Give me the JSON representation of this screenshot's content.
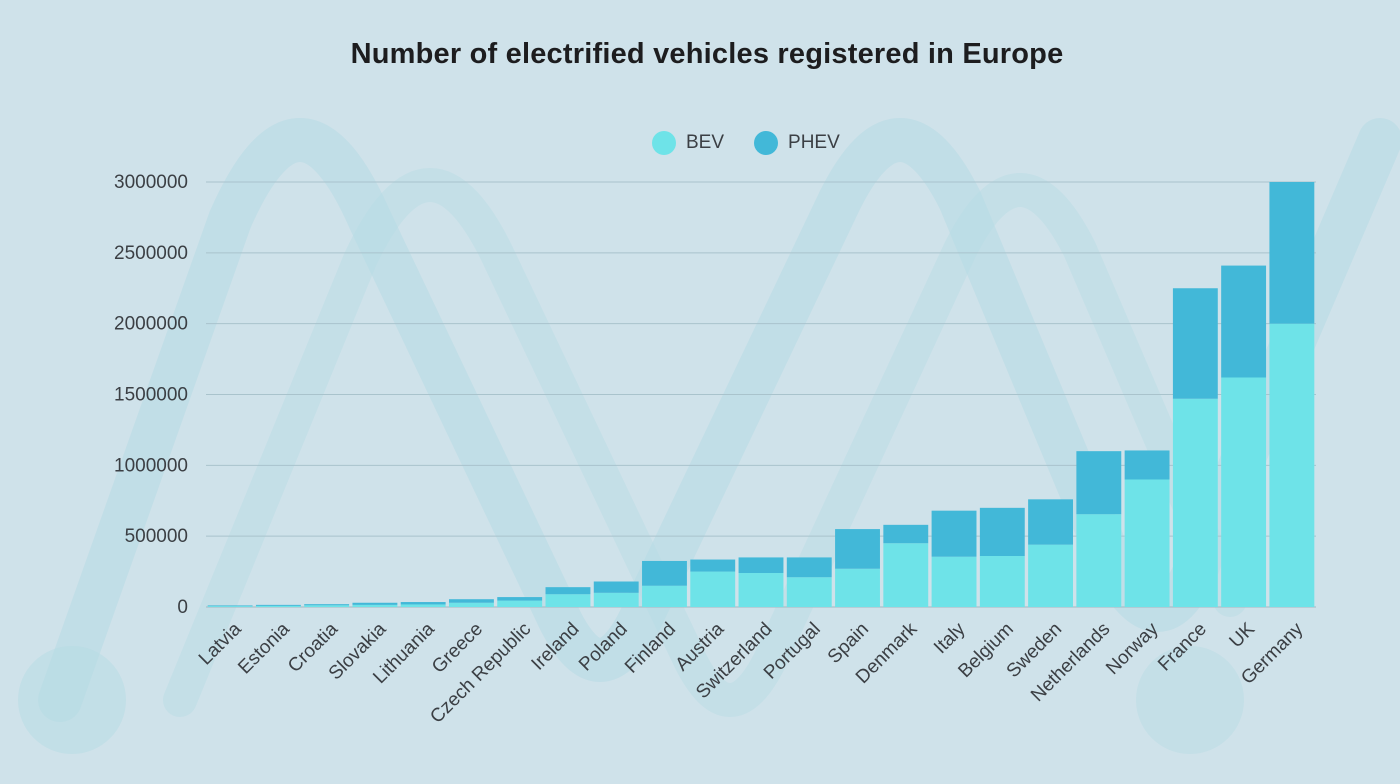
{
  "chart_data": {
    "type": "bar",
    "stacked": true,
    "title": "Number of electrified vehicles registered in Europe",
    "xlabel": "",
    "ylabel": "",
    "ylim": [
      0,
      3000000
    ],
    "yticks": [
      0,
      500000,
      1000000,
      1500000,
      2000000,
      2500000,
      3000000
    ],
    "grid": true,
    "legend_position": "top-center",
    "categories": [
      "Latvia",
      "Estonia",
      "Croatia",
      "Slovakia",
      "Lithuania",
      "Greece",
      "Czech Republic",
      "Ireland",
      "Poland",
      "Finland",
      "Austria",
      "Switzerland",
      "Portugal",
      "Spain",
      "Denmark",
      "Italy",
      "Belgium",
      "Sweden",
      "Netherlands",
      "Norway",
      "France",
      "UK",
      "Germany"
    ],
    "series": [
      {
        "name": "BEV",
        "color": "#6ee3e8",
        "values": [
          6000,
          8000,
          12000,
          15000,
          18000,
          30000,
          45000,
          90000,
          100000,
          150000,
          250000,
          240000,
          210000,
          270000,
          450000,
          355000,
          360000,
          440000,
          655000,
          900000,
          1470000,
          1620000,
          2000000
        ]
      },
      {
        "name": "PHEV",
        "color": "#42b8d8",
        "values": [
          5000,
          7000,
          8000,
          15000,
          17000,
          25000,
          25000,
          50000,
          80000,
          175000,
          85000,
          110000,
          140000,
          280000,
          130000,
          325000,
          340000,
          320000,
          445000,
          205000,
          780000,
          790000,
          1000000
        ]
      }
    ]
  }
}
